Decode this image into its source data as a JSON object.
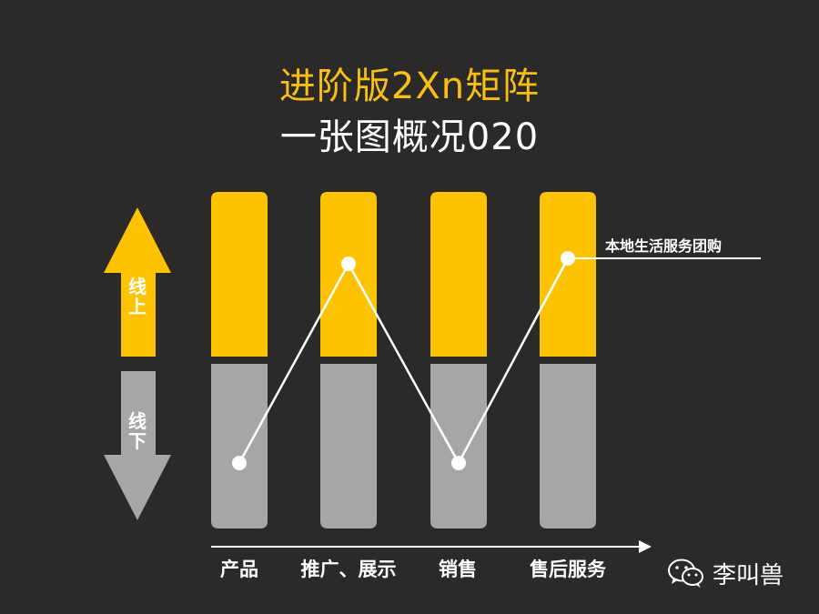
{
  "title_line1": "进阶版2Xn矩阵",
  "title_line2": "一张图概况020",
  "arrows": {
    "up_label": "线上",
    "down_label": "线下"
  },
  "categories": [
    "产品",
    "推广、展示",
    "销售",
    "售后服务"
  ],
  "annotation": "本地生活服务团购",
  "brand": {
    "name": "李叫兽",
    "icon": "wechat-icon"
  },
  "colors": {
    "online": "#fdc300",
    "offline": "#a6a6a6",
    "background": "#2b2a29",
    "title_accent": "#f7bf16",
    "line": "#ffffff"
  },
  "path_levels": [
    "线下",
    "线上",
    "线下",
    "线上"
  ]
}
